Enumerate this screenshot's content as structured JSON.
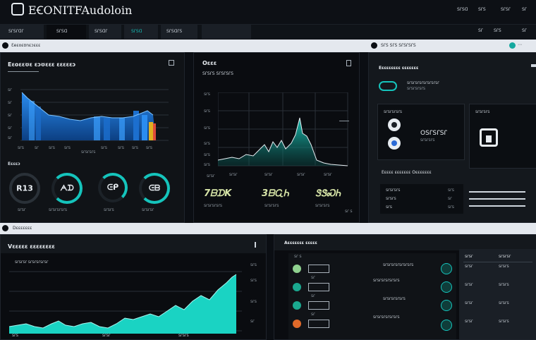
{
  "header": {
    "title": "EꞒONITFAudoloin",
    "links": [
      "ꓢꓩꓢꓷ",
      "ꓢꓩꓢ",
      "ꓢꓩꓢꓩ",
      "ꓢꓩ"
    ]
  },
  "tabs": [
    "ꓢꓩꓢꓩꓷꓩ",
    "ꓢꓩꓢꓷ",
    "ꓢꓩꓢꓷꓩ",
    "ꓢꓩꓢꓷ",
    "ꓢꓩꓢꓷꓩꓢ"
  ],
  "tabs_right": [
    "ꓢꓩ",
    "ꓢꓩꓢ",
    "ꓢꓩ"
  ],
  "section_top_left_label": "Ɛeɛoɛʊnɛɔɛɛɛ",
  "section_top_right_label": "ꓢꓩꓢ ꓢꓩꓢ ꓢꓩꓢꓩꓢꓩꓢ",
  "panel1": {
    "title": "Eɛoɛɛʊɛ ɛɔʊɛɛɛ ɛɛɛɛɛɔ",
    "x_labels": [
      "ꓢꓩꓢ",
      "ꓢꓩ",
      "ꓢꓩꓢ",
      "ꓢꓩꓢ",
      "ꓢꓩꓢ",
      "ꓢꓩꓢ",
      "ꓢꓩꓢ",
      "ꓢꓩꓢ"
    ],
    "y_labels": [
      "ꓢꓩ",
      "ꓢꓩ",
      "ꓢꓩ",
      "ꓢꓩ",
      "ꓢꓩ"
    ],
    "sub_label": "ꓢꓩꓢꓩꓢꓩꓢ",
    "metrics_label": "Eɛɛɛɔ",
    "rings": [
      {
        "value": "R13",
        "caption": "ꓢꓩꓢꓩ",
        "color": "#2a3138"
      },
      {
        "value": "ᗅᗪ",
        "caption": "ꓢꓩꓢꓩꓢꓩꓢꓩꓢ",
        "color": "#15c4bc"
      },
      {
        "value": "ᕮᑭ",
        "caption": "ꓢꓩꓢꓩꓢ",
        "color": "#15c4bc"
      },
      {
        "value": "ᕮᗷ",
        "caption": "ꓢꓩꓢꓩꓢꓩ",
        "color": "#15c4bc"
      }
    ]
  },
  "panel2": {
    "title": "Oɛɛɛ",
    "subtitle": "ꓢꓩꓢꓩꓢ ꓢꓩꓢꓩꓢꓩꓢ",
    "y_labels": [
      "ꓢꓩꓢ",
      "ꓢꓩꓢ",
      "ꓢꓩꓢ",
      "ꓢꓩꓢ",
      "ꓢꓩꓢ",
      "ꓢꓩꓢ"
    ],
    "x_labels": [
      "ꓢꓩꓢꓩ",
      "ꓢꓩꓢꓩ",
      "ꓢꓩꓢꓩ",
      "ꓢꓩꓢꓩ",
      "ꓢꓩꓢꓩ"
    ],
    "values": [
      {
        "value": "7ᗷᗪK",
        "caption": "ꓢꓩꓢꓩꓢꓩꓢꓩꓢ"
      },
      {
        "value": "3ᗷᏩᏂ",
        "caption": "ꓢꓩꓢꓩꓢꓩꓢ"
      },
      {
        "value": "ᏕᏕᏍᏂ",
        "caption": "ꓢꓩꓢꓩꓢꓩꓢ"
      }
    ],
    "footer": "ꓢꓩ ꓢ"
  },
  "panel3": {
    "title": "Eɛɛɛɛɛɛɛɛ ɛɛɛɛɛɛɛ",
    "line1": "ꓢꓩꓢꓩꓢꓩꓢꓩꓢꓩꓢꓩꓢꓩꓢꓩ",
    "line2": "ꓢꓩꓢꓩꓢꓩꓢꓩꓢ",
    "box1_title": "ꓢꓩꓢꓩꓢꓩꓢꓩꓢ",
    "box1_text": "Oꓢꓩꓢꓩꓢꓩ",
    "box1_sub": "ꓢꓩꓢꓩꓢꓩꓢ",
    "box2_title": "ꓢꓩꓢꓩꓢꓩꓢ",
    "table_title": "Eɛɛɛɛ ɛɛɛɛɛɛɛ Oɛɛɛɛɛɛɛ",
    "rows": [
      "ꓢꓩꓢꓩꓢꓩꓢ",
      "ꓢꓩꓢꓩꓢ",
      "ꓢꓩꓢ"
    ],
    "row_right": [
      "ꓢꓩꓢ",
      "ꓢꓩ",
      "ꓢꓩꓢ"
    ]
  },
  "section_bottom_left_label": "Dɛɛɛɛɛɛɛ",
  "panel4": {
    "title": "Vɛɛɛɛɛ ɛɛɛɛɛɛɛɛ",
    "legend": "ꓢꓩꓢꓩꓢꓩ ꓢꓩꓢꓩꓢꓩꓢꓩꓢꓩ",
    "y_labels": [
      "ꓢꓩꓢ",
      "ꓢꓩꓢ",
      "ꓢꓩꓢ",
      "ꓢꓩ"
    ],
    "x_labels": [
      "ꓢꓩꓢ",
      "ꓢꓩꓢꓩ",
      "ꓢꓩꓢꓩꓢ"
    ]
  },
  "panel5": {
    "title": "Aɛɛɛɛɛɛɛ ɛɛɛɛɛ",
    "rows": [
      {
        "label": "ꓢꓩ ꓢ",
        "text": "ꓢꓩꓢꓩꓢꓩꓢꓩꓢꓩꓢꓩꓢꓩꓢ",
        "icon": "#8fd18f"
      },
      {
        "label": "ꓢꓩ",
        "text": "ꓢꓩꓢꓩꓢꓩꓢꓩꓢꓩꓢꓩꓢ",
        "icon": "#1aa88f"
      },
      {
        "label": "ꓢꓩ",
        "text": "ꓢꓩꓢꓩꓢꓩꓢꓩꓢꓩꓢ",
        "icon": "#1aa88f"
      },
      {
        "label": "ꓢꓩ",
        "text": "ꓢꓩꓢꓩꓢꓩꓢꓩꓢꓩꓢꓩꓢ",
        "icon": "#e06a2a"
      }
    ],
    "side_headers": [
      "ꓢꓩꓢꓩ",
      "ꓢꓩꓢꓩꓢꓩ"
    ],
    "side_rows": [
      [
        "ꓢꓩꓢꓩ",
        "ꓢꓩꓢꓩꓢ"
      ],
      [
        "ꓢꓩꓢꓩ",
        "ꓢꓩꓢꓩꓢ"
      ],
      [
        "ꓢꓩꓢꓩ",
        "ꓢꓩꓢꓩꓢ"
      ],
      [
        "ꓢꓩꓢꓩ",
        "ꓢꓩꓢꓩꓢ"
      ]
    ]
  },
  "colors": {
    "accent": "#15c4bc",
    "blue": "#1f7fd6",
    "bar_orange": "#e0b020",
    "bg": "#0b0e13"
  }
}
